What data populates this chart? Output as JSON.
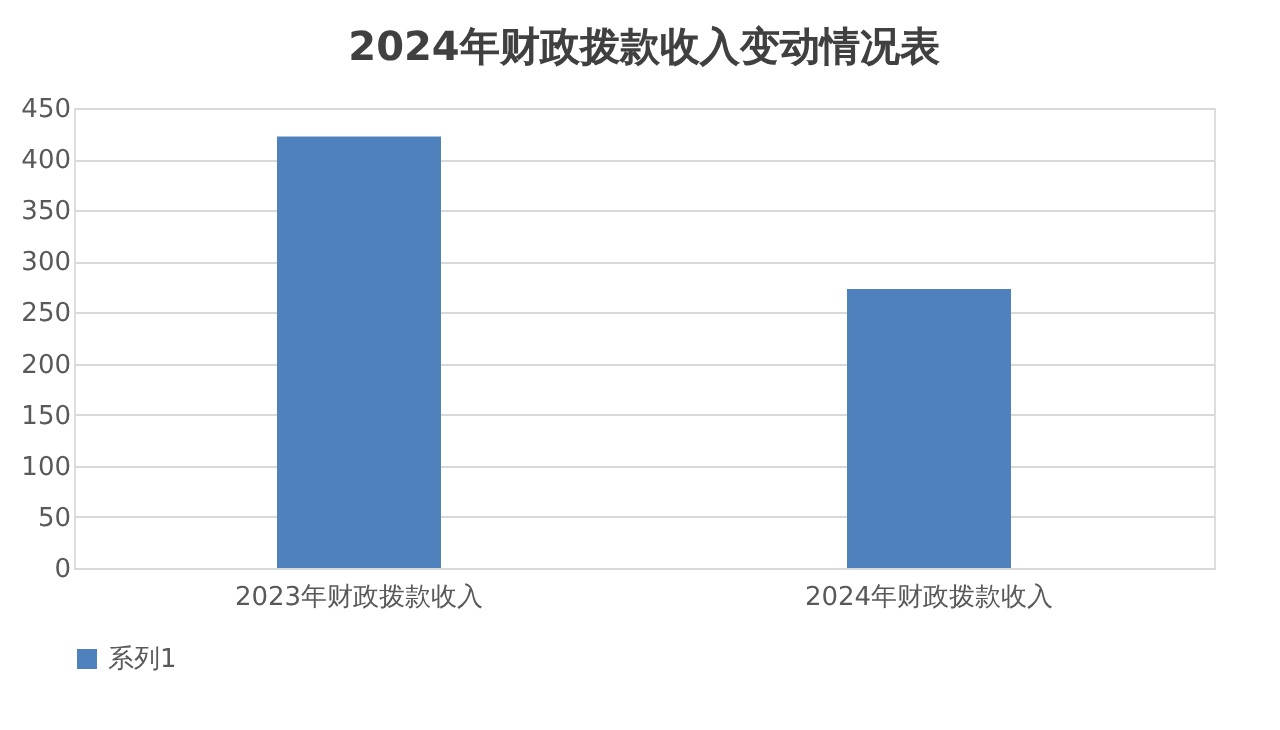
{
  "chart_data": {
    "type": "bar",
    "title": "2024年财政拨款收入变动情况表",
    "categories": [
      "2023年财政拨款收入",
      "2024年财政拨款收入"
    ],
    "series": [
      {
        "name": "系列1",
        "color": "#4f81bd",
        "values": [
          422,
          273
        ]
      }
    ],
    "ylim": [
      0,
      450
    ],
    "yticks": [
      0,
      50,
      100,
      150,
      200,
      250,
      300,
      350,
      400,
      450
    ],
    "grid": "y",
    "legend": "bottom"
  }
}
